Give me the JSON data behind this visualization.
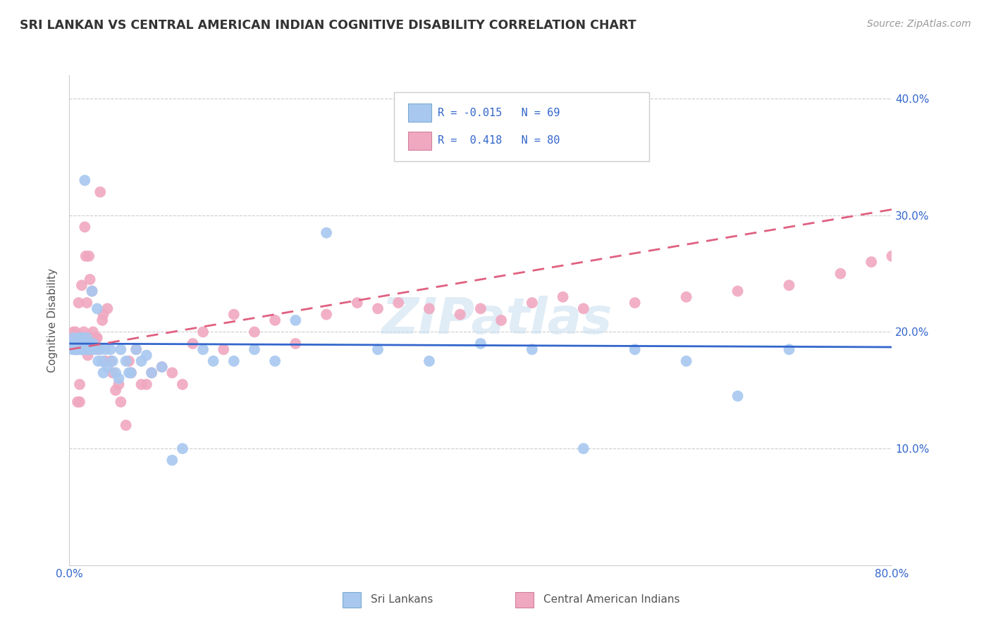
{
  "title": "SRI LANKAN VS CENTRAL AMERICAN INDIAN COGNITIVE DISABILITY CORRELATION CHART",
  "source": "Source: ZipAtlas.com",
  "ylabel": "Cognitive Disability",
  "xlim": [
    0.0,
    0.8
  ],
  "ylim": [
    0.0,
    0.42
  ],
  "sri_lankan_color": "#a8c8f0",
  "sri_lankan_edge": "#7aaad0",
  "central_american_color": "#f0a8c0",
  "central_american_edge": "#d080a0",
  "sri_lankan_line_color": "#3366cc",
  "central_american_line_color": "#e06080",
  "sri_lankan_R": -0.015,
  "sri_lankan_N": 69,
  "central_american_R": 0.418,
  "central_american_N": 80,
  "watermark": "ZIPatlas",
  "sri_lankans_x": [
    0.002,
    0.003,
    0.004,
    0.005,
    0.005,
    0.006,
    0.007,
    0.007,
    0.008,
    0.008,
    0.009,
    0.009,
    0.01,
    0.01,
    0.011,
    0.012,
    0.012,
    0.013,
    0.013,
    0.014,
    0.015,
    0.015,
    0.016,
    0.017,
    0.018,
    0.019,
    0.02,
    0.02,
    0.022,
    0.023,
    0.025,
    0.027,
    0.028,
    0.03,
    0.032,
    0.033,
    0.035,
    0.037,
    0.04,
    0.042,
    0.045,
    0.048,
    0.05,
    0.055,
    0.058,
    0.06,
    0.065,
    0.07,
    0.075,
    0.08,
    0.09,
    0.1,
    0.11,
    0.13,
    0.14,
    0.16,
    0.18,
    0.2,
    0.22,
    0.25,
    0.3,
    0.35,
    0.4,
    0.45,
    0.5,
    0.55,
    0.6,
    0.65,
    0.7
  ],
  "sri_lankans_y": [
    0.19,
    0.185,
    0.195,
    0.19,
    0.185,
    0.19,
    0.185,
    0.19,
    0.19,
    0.185,
    0.188,
    0.192,
    0.195,
    0.185,
    0.19,
    0.185,
    0.195,
    0.19,
    0.185,
    0.192,
    0.33,
    0.185,
    0.19,
    0.195,
    0.19,
    0.185,
    0.19,
    0.185,
    0.235,
    0.19,
    0.185,
    0.22,
    0.175,
    0.185,
    0.175,
    0.165,
    0.185,
    0.17,
    0.185,
    0.175,
    0.165,
    0.16,
    0.185,
    0.175,
    0.165,
    0.165,
    0.185,
    0.175,
    0.18,
    0.165,
    0.17,
    0.09,
    0.1,
    0.185,
    0.175,
    0.175,
    0.185,
    0.175,
    0.21,
    0.285,
    0.185,
    0.175,
    0.19,
    0.185,
    0.1,
    0.185,
    0.175,
    0.145,
    0.185
  ],
  "central_americans_x": [
    0.002,
    0.003,
    0.004,
    0.005,
    0.005,
    0.006,
    0.006,
    0.007,
    0.007,
    0.008,
    0.008,
    0.009,
    0.009,
    0.01,
    0.01,
    0.011,
    0.012,
    0.012,
    0.013,
    0.014,
    0.015,
    0.015,
    0.016,
    0.016,
    0.017,
    0.018,
    0.019,
    0.02,
    0.021,
    0.022,
    0.023,
    0.025,
    0.026,
    0.027,
    0.028,
    0.03,
    0.032,
    0.033,
    0.035,
    0.037,
    0.04,
    0.042,
    0.045,
    0.048,
    0.05,
    0.055,
    0.058,
    0.06,
    0.065,
    0.07,
    0.075,
    0.08,
    0.09,
    0.1,
    0.11,
    0.12,
    0.13,
    0.15,
    0.16,
    0.18,
    0.2,
    0.22,
    0.25,
    0.28,
    0.3,
    0.32,
    0.35,
    0.38,
    0.4,
    0.42,
    0.45,
    0.48,
    0.5,
    0.55,
    0.6,
    0.65,
    0.7,
    0.75,
    0.78,
    0.8
  ],
  "central_americans_y": [
    0.195,
    0.19,
    0.2,
    0.185,
    0.19,
    0.2,
    0.185,
    0.195,
    0.19,
    0.14,
    0.185,
    0.195,
    0.225,
    0.14,
    0.155,
    0.19,
    0.24,
    0.185,
    0.195,
    0.2,
    0.29,
    0.19,
    0.265,
    0.195,
    0.225,
    0.18,
    0.265,
    0.245,
    0.195,
    0.235,
    0.2,
    0.19,
    0.195,
    0.195,
    0.185,
    0.32,
    0.21,
    0.215,
    0.175,
    0.22,
    0.175,
    0.165,
    0.15,
    0.155,
    0.14,
    0.12,
    0.175,
    0.165,
    0.185,
    0.155,
    0.155,
    0.165,
    0.17,
    0.165,
    0.155,
    0.19,
    0.2,
    0.185,
    0.215,
    0.2,
    0.21,
    0.19,
    0.215,
    0.225,
    0.22,
    0.225,
    0.22,
    0.215,
    0.22,
    0.21,
    0.225,
    0.23,
    0.22,
    0.225,
    0.23,
    0.235,
    0.24,
    0.25,
    0.26,
    0.265
  ],
  "sri_lankan_trend": [
    0.19,
    0.187
  ],
  "central_american_trend": [
    0.185,
    0.305
  ],
  "grid_color": "#cccccc",
  "tick_color": "#3366cc",
  "label_color": "#555555",
  "title_color": "#333333",
  "source_color": "#999999"
}
